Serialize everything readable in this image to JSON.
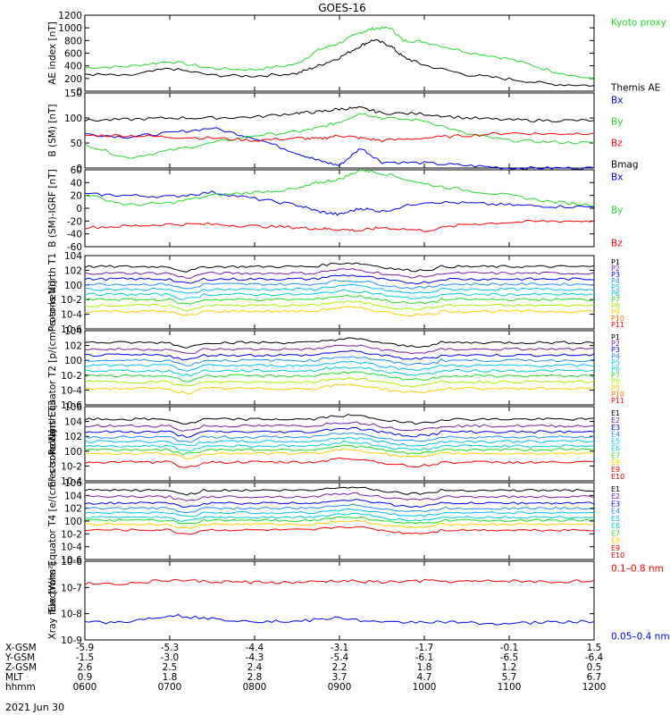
{
  "title": "GOES-16",
  "date_label": "2021 Jun 30",
  "colors": {
    "black": "#000000",
    "blue": "#0000ff",
    "green": "#22dd22",
    "red": "#ff0000"
  },
  "orbit_rows": [
    {
      "label": "X-GSM",
      "values": [
        "-5.9",
        "-5.3",
        "-4.4",
        "-3.1",
        "-1.7",
        "-0.1",
        "1.5"
      ]
    },
    {
      "label": "Y-GSM",
      "values": [
        "-1.5",
        "-3.0",
        "-4.3",
        "-5.4",
        "-6.1",
        "-6.5",
        "-6.4"
      ]
    },
    {
      "label": "Z-GSM",
      "values": [
        "2.6",
        "2.5",
        "2.4",
        "2.2",
        "1.8",
        "1.2",
        "0.5"
      ]
    },
    {
      "label": "MLT",
      "values": [
        "0.9",
        "1.8",
        "2.8",
        "3.7",
        "4.7",
        "5.7",
        "6.7"
      ]
    },
    {
      "label": "hhmm",
      "values": [
        "0600",
        "0700",
        "0800",
        "0900",
        "1000",
        "1100",
        "1200"
      ]
    }
  ],
  "chart_data": [
    {
      "type": "line",
      "ylabel": "AE index [nT]",
      "ylim": [
        0,
        1200
      ],
      "yticks": [
        "0",
        "200",
        "400",
        "600",
        "800",
        "1000",
        "1200"
      ],
      "legend": [
        {
          "text": "Kyoto proxy AE",
          "color": "#22dd22"
        },
        {
          "text": "Themis AE",
          "color": "#000000"
        }
      ],
      "series": [
        {
          "name": "Kyoto proxy AE",
          "color": "#22dd22",
          "x": [
            6.0,
            6.5,
            7.0,
            7.5,
            8.0,
            8.5,
            8.75,
            9.0,
            9.25,
            9.4,
            9.6,
            9.75,
            10.0,
            10.5,
            11.0,
            11.5,
            12.0
          ],
          "y": [
            370,
            390,
            470,
            360,
            340,
            430,
            650,
            760,
            930,
            990,
            1000,
            800,
            780,
            620,
            510,
            320,
            180
          ]
        },
        {
          "name": "Themis AE",
          "color": "#000000",
          "x": [
            6.0,
            6.5,
            7.0,
            7.5,
            8.0,
            8.5,
            8.75,
            9.0,
            9.25,
            9.4,
            9.6,
            9.75,
            10.0,
            10.5,
            11.0,
            11.5,
            12.0
          ],
          "y": [
            270,
            240,
            360,
            250,
            240,
            280,
            400,
            530,
            720,
            810,
            720,
            540,
            410,
            260,
            190,
            110,
            90
          ]
        }
      ]
    },
    {
      "type": "line",
      "ylabel": "B (SM) [nT]",
      "ylim": [
        0,
        150
      ],
      "yticks": [
        "0",
        "50",
        "100",
        "150"
      ],
      "legend": [
        {
          "text": "Bx",
          "color": "#0000ff"
        },
        {
          "text": "By",
          "color": "#22dd22"
        },
        {
          "text": "Bz",
          "color": "#ff0000"
        },
        {
          "text": "Bmag",
          "color": "#000000"
        }
      ],
      "series": [
        {
          "name": "Bx",
          "color": "#0000ff",
          "x": [
            6.0,
            6.5,
            7.0,
            7.5,
            8.0,
            8.5,
            8.75,
            9.0,
            9.25,
            9.5,
            10.0,
            10.5,
            11.0,
            11.5,
            12.0
          ],
          "y": [
            68,
            62,
            70,
            80,
            60,
            30,
            15,
            5,
            40,
            12,
            10,
            5,
            0,
            0,
            0
          ]
        },
        {
          "name": "By",
          "color": "#22dd22",
          "x": [
            6.0,
            6.5,
            7.0,
            7.5,
            8.0,
            8.5,
            8.75,
            9.0,
            9.25,
            9.5,
            10.0,
            10.5,
            11.0,
            11.5,
            12.0
          ],
          "y": [
            48,
            20,
            35,
            50,
            65,
            72,
            80,
            92,
            110,
            100,
            95,
            68,
            55,
            52,
            50
          ]
        },
        {
          "name": "Bz",
          "color": "#ff0000",
          "x": [
            6.0,
            6.5,
            7.0,
            7.5,
            8.0,
            8.5,
            8.75,
            9.0,
            9.25,
            9.5,
            10.0,
            10.5,
            11.0,
            11.5,
            12.0
          ],
          "y": [
            65,
            65,
            62,
            60,
            55,
            60,
            58,
            65,
            60,
            55,
            60,
            65,
            70,
            68,
            70
          ]
        },
        {
          "name": "Bmag",
          "color": "#000000",
          "x": [
            6.0,
            6.5,
            7.0,
            7.5,
            8.0,
            8.5,
            8.75,
            9.0,
            9.25,
            9.5,
            10.0,
            10.5,
            11.0,
            11.5,
            12.0
          ],
          "y": [
            95,
            97,
            100,
            100,
            102,
            110,
            112,
            118,
            120,
            110,
            108,
            100,
            96,
            95,
            95
          ]
        }
      ]
    },
    {
      "type": "line",
      "ylabel": "B (SM)-IGRF [nT]",
      "ylim": [
        -60,
        60
      ],
      "yticks": [
        "-60",
        "-40",
        "-20",
        "0",
        "20",
        "40",
        "60"
      ],
      "legend": [
        {
          "text": "Bx",
          "color": "#0000ff"
        },
        {
          "text": "By",
          "color": "#22dd22"
        },
        {
          "text": "Bz",
          "color": "#ff0000"
        }
      ],
      "series": [
        {
          "name": "Bx",
          "color": "#0000ff",
          "x": [
            6.0,
            6.5,
            7.0,
            7.5,
            8.0,
            8.5,
            8.75,
            9.0,
            9.25,
            9.5,
            10.0,
            10.5,
            11.0,
            11.5,
            12.0
          ],
          "y": [
            22,
            20,
            18,
            25,
            15,
            5,
            -5,
            -10,
            0,
            -5,
            10,
            8,
            5,
            3,
            2
          ]
        },
        {
          "name": "By",
          "color": "#22dd22",
          "x": [
            6.0,
            6.5,
            7.0,
            7.5,
            8.0,
            8.5,
            8.75,
            9.0,
            9.25,
            9.5,
            10.0,
            10.5,
            11.0,
            11.5,
            12.0
          ],
          "y": [
            22,
            5,
            8,
            20,
            25,
            30,
            40,
            45,
            60,
            55,
            38,
            28,
            20,
            10,
            5
          ]
        },
        {
          "name": "Bz",
          "color": "#ff0000",
          "x": [
            6.0,
            6.5,
            7.0,
            7.5,
            8.0,
            8.5,
            8.75,
            9.0,
            9.25,
            9.5,
            10.0,
            10.5,
            11.0,
            11.5,
            12.0
          ],
          "y": [
            -30,
            -28,
            -25,
            -25,
            -28,
            -30,
            -32,
            -33,
            -35,
            -30,
            -35,
            -25,
            -22,
            -20,
            -20
          ]
        }
      ]
    },
    {
      "type": "line",
      "ylabel": "Protons North T1",
      "ylim": [
        -6,
        4
      ],
      "yticks": [
        "10-6",
        "10-4",
        "10-2",
        "100",
        "102",
        "104"
      ],
      "legend": [
        {
          "text": "P1",
          "color": "#000000"
        },
        {
          "text": "P2",
          "color": "#7a1bb0"
        },
        {
          "text": "P3",
          "color": "#0000ff"
        },
        {
          "text": "P4",
          "color": "#1e90ff"
        },
        {
          "text": "P5",
          "color": "#00bfff"
        },
        {
          "text": "P6",
          "color": "#00ced1"
        },
        {
          "text": "P7",
          "color": "#22dd22"
        },
        {
          "text": "P8",
          "color": "#aaee00"
        },
        {
          "text": "P9",
          "color": "#ffcc00"
        },
        {
          "text": "P10",
          "color": "#ff6600"
        },
        {
          "text": "P11",
          "color": "#ff0000"
        }
      ],
      "series": [
        {
          "name": "P1",
          "color": "#000000",
          "base": 2.5
        },
        {
          "name": "P2",
          "color": "#7a1bb0",
          "base": 1.6
        },
        {
          "name": "P3",
          "color": "#0000ff",
          "base": 0.8
        },
        {
          "name": "P4",
          "color": "#1e90ff",
          "base": 0.1
        },
        {
          "name": "P5",
          "color": "#00bfff",
          "base": -0.6
        },
        {
          "name": "P6",
          "color": "#00ced1",
          "base": -1.3
        },
        {
          "name": "P7",
          "color": "#22dd22",
          "base": -2.0
        },
        {
          "name": "P8",
          "color": "#aaee00",
          "base": -2.8
        },
        {
          "name": "P9",
          "color": "#ffcc00",
          "base": -3.6
        }
      ]
    },
    {
      "type": "line",
      "ylabel": "Protons Equator T2 [p/(cm²-s-sr-keV)]",
      "ylim": [
        -6,
        4
      ],
      "yticks": [
        "10-6",
        "10-4",
        "10-2",
        "100",
        "102",
        "104"
      ],
      "legend": [
        {
          "text": "P1",
          "color": "#000000"
        },
        {
          "text": "P2",
          "color": "#7a1bb0"
        },
        {
          "text": "P3",
          "color": "#0000ff"
        },
        {
          "text": "P4",
          "color": "#1e90ff"
        },
        {
          "text": "P5",
          "color": "#00bfff"
        },
        {
          "text": "P6",
          "color": "#00ced1"
        },
        {
          "text": "P7",
          "color": "#22dd22"
        },
        {
          "text": "P8",
          "color": "#aaee00"
        },
        {
          "text": "P9",
          "color": "#ffcc00"
        },
        {
          "text": "P10",
          "color": "#ff6600"
        },
        {
          "text": "P11",
          "color": "#ff0000"
        }
      ],
      "series": [
        {
          "name": "P1",
          "color": "#000000",
          "base": 2.4
        },
        {
          "name": "P2",
          "color": "#7a1bb0",
          "base": 1.5
        },
        {
          "name": "P3",
          "color": "#0000ff",
          "base": 0.7
        },
        {
          "name": "P4",
          "color": "#1e90ff",
          "base": 0.0
        },
        {
          "name": "P5",
          "color": "#00bfff",
          "base": -0.7
        },
        {
          "name": "P6",
          "color": "#00ced1",
          "base": -1.4
        },
        {
          "name": "P7",
          "color": "#22dd22",
          "base": -2.1
        },
        {
          "name": "P8",
          "color": "#aaee00",
          "base": -2.9
        },
        {
          "name": "P9",
          "color": "#ffcc00",
          "base": -3.8
        }
      ]
    },
    {
      "type": "line",
      "ylabel": "Electrons North T3",
      "ylim": [
        -4,
        6
      ],
      "yticks": [
        "10-4",
        "10-2",
        "100",
        "102",
        "104",
        "106"
      ],
      "legend": [
        {
          "text": "E1",
          "color": "#000000"
        },
        {
          "text": "E2",
          "color": "#7a1bb0"
        },
        {
          "text": "E3",
          "color": "#0000ff"
        },
        {
          "text": "E4",
          "color": "#1e90ff"
        },
        {
          "text": "E5",
          "color": "#00bfff"
        },
        {
          "text": "E6",
          "color": "#00ced1"
        },
        {
          "text": "E7",
          "color": "#22dd22"
        },
        {
          "text": "E8",
          "color": "#ffcc00"
        },
        {
          "text": "E9",
          "color": "#ff0000"
        },
        {
          "text": "E10",
          "color": "#cc0000"
        }
      ],
      "series": [
        {
          "name": "E1",
          "color": "#000000",
          "base": 4.3
        },
        {
          "name": "E2",
          "color": "#7a1bb0",
          "base": 3.4
        },
        {
          "name": "E3",
          "color": "#0000ff",
          "base": 2.6
        },
        {
          "name": "E4",
          "color": "#1e90ff",
          "base": 1.9
        },
        {
          "name": "E5",
          "color": "#00bfff",
          "base": 1.3
        },
        {
          "name": "E6",
          "color": "#00ced1",
          "base": 0.7
        },
        {
          "name": "E7",
          "color": "#22dd22",
          "base": 0.2
        },
        {
          "name": "E8",
          "color": "#ffcc00",
          "base": -0.3
        },
        {
          "name": "E9",
          "color": "#ff0000",
          "base": -1.5
        }
      ]
    },
    {
      "type": "line",
      "ylabel": "Electrons Equator T4 [e/(cm²-s-sr-keV)]",
      "ylim": [
        -6,
        6
      ],
      "yticks": [
        "10-6",
        "10-4",
        "10-2",
        "100",
        "102",
        "104",
        "106"
      ],
      "legend": [
        {
          "text": "E1",
          "color": "#000000"
        },
        {
          "text": "E2",
          "color": "#7a1bb0"
        },
        {
          "text": "E3",
          "color": "#0000ff"
        },
        {
          "text": "E4",
          "color": "#1e90ff"
        },
        {
          "text": "E5",
          "color": "#00bfff"
        },
        {
          "text": "E6",
          "color": "#00ced1"
        },
        {
          "text": "E7",
          "color": "#22dd22"
        },
        {
          "text": "E8",
          "color": "#ffcc00"
        },
        {
          "text": "E9",
          "color": "#ff0000"
        },
        {
          "text": "E10",
          "color": "#cc0000"
        }
      ],
      "series": [
        {
          "name": "E1",
          "color": "#000000",
          "base": 4.8
        },
        {
          "name": "E2",
          "color": "#7a1bb0",
          "base": 3.8
        },
        {
          "name": "E3",
          "color": "#0000ff",
          "base": 2.8
        },
        {
          "name": "E4",
          "color": "#1e90ff",
          "base": 2.0
        },
        {
          "name": "E5",
          "color": "#00bfff",
          "base": 1.3
        },
        {
          "name": "E6",
          "color": "#00ced1",
          "base": 0.6
        },
        {
          "name": "E7",
          "color": "#22dd22",
          "base": 0.1
        },
        {
          "name": "E8",
          "color": "#ffcc00",
          "base": -0.5
        },
        {
          "name": "E9",
          "color": "#ff0000",
          "base": -1.4
        }
      ]
    },
    {
      "type": "line",
      "ylabel": "Xray flux [W/m²]",
      "ylim": [
        -9,
        -6
      ],
      "yticks": [
        "10-9",
        "10-8",
        "10-7",
        "10-6"
      ],
      "legend": [
        {
          "text": "0.1–0.8 nm",
          "color": "#ff0000"
        },
        {
          "text": "0.05–0.4 nm",
          "color": "#0000ff"
        }
      ],
      "series": [
        {
          "name": "0.1–0.8 nm",
          "color": "#ff0000",
          "x": [
            6.0,
            6.5,
            7.0,
            7.5,
            8.0,
            8.5,
            9.0,
            9.5,
            10.0,
            10.5,
            11.0,
            11.5,
            12.0
          ],
          "y": [
            -6.85,
            -6.85,
            -6.72,
            -6.78,
            -6.8,
            -6.82,
            -6.75,
            -6.8,
            -6.75,
            -6.78,
            -6.75,
            -6.8,
            -6.72
          ]
        },
        {
          "name": "0.05–0.4 nm",
          "color": "#0000ff",
          "x": [
            6.0,
            6.5,
            7.0,
            7.5,
            8.0,
            8.5,
            9.0,
            9.5,
            10.0,
            10.5,
            11.0,
            11.5,
            12.0
          ],
          "y": [
            -8.35,
            -8.3,
            -8.05,
            -8.2,
            -8.28,
            -8.3,
            -8.15,
            -8.35,
            -8.3,
            -8.35,
            -8.38,
            -8.32,
            -8.3
          ]
        }
      ]
    }
  ]
}
